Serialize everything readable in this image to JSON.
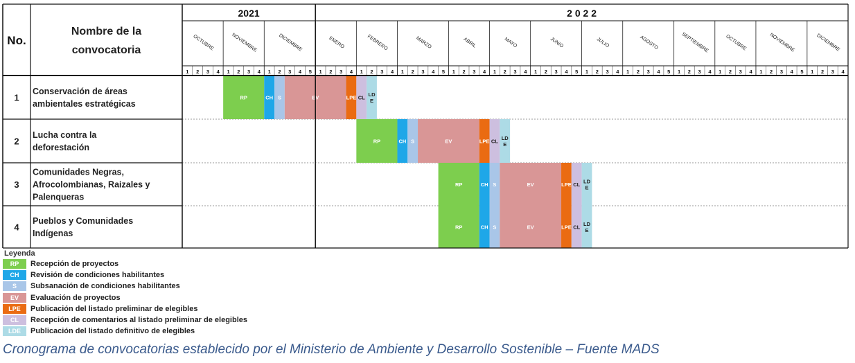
{
  "headers": {
    "no": "No.",
    "name": "Nombre de la convocatoria",
    "years": [
      {
        "label": "2021",
        "months": 3
      },
      {
        "label": "2022",
        "months": 12
      }
    ]
  },
  "months": [
    {
      "label": "OCTUBRE",
      "weeks": 4
    },
    {
      "label": "NOVIEMBRE",
      "weeks": 4
    },
    {
      "label": "DICIEMBRE",
      "weeks": 5
    },
    {
      "label": "ENERO",
      "weeks": 4
    },
    {
      "label": "FEBRERO",
      "weeks": 4
    },
    {
      "label": "MARZO",
      "weeks": 5
    },
    {
      "label": "ABRIL",
      "weeks": 4
    },
    {
      "label": "MAYO",
      "weeks": 4
    },
    {
      "label": "JUNIO",
      "weeks": 5
    },
    {
      "label": "JULIO",
      "weeks": 4
    },
    {
      "label": "AGOSTO",
      "weeks": 5
    },
    {
      "label": "SEPTIEMBRE",
      "weeks": 4
    },
    {
      "label": "OCTUBRE",
      "weeks": 4
    },
    {
      "label": "NOVIEMBRE",
      "weeks": 5
    },
    {
      "label": "DICIEMBRE",
      "weeks": 4
    }
  ],
  "phase_colors": {
    "RP": "#7dce4e",
    "CH": "#1ea7e8",
    "S": "#a9c6e8",
    "EV": "#d99696",
    "LPE": "#ea6b12",
    "CL": "#cdbfdf",
    "LDE": "#addbe6"
  },
  "chart_data": {
    "type": "gantt",
    "unit": "week index (0 = week 1 of OCTUBRE 2021)",
    "rows": [
      {
        "no": "1",
        "name": "Conservación de áreas ambientales estratégicas",
        "phases": [
          {
            "code": "RP",
            "label": "RP",
            "start": 4,
            "end": 7
          },
          {
            "code": "CH",
            "label": "CH",
            "start": 8,
            "end": 8
          },
          {
            "code": "S",
            "label": "S",
            "start": 9,
            "end": 9
          },
          {
            "code": "EV",
            "label": "EV",
            "start": 10,
            "end": 15
          },
          {
            "code": "LPE",
            "label": "LPE",
            "start": 16,
            "end": 16
          },
          {
            "code": "CL",
            "label": "CL",
            "start": 17,
            "end": 17
          },
          {
            "code": "LDE",
            "label": "LD\nE",
            "start": 18,
            "end": 18
          }
        ]
      },
      {
        "no": "2",
        "name": "Lucha contra la deforestación",
        "phases": [
          {
            "code": "RP",
            "label": "RP",
            "start": 17,
            "end": 20
          },
          {
            "code": "CH",
            "label": "CH",
            "start": 21,
            "end": 21
          },
          {
            "code": "S",
            "label": "S",
            "start": 22,
            "end": 22
          },
          {
            "code": "EV",
            "label": "EV",
            "start": 23,
            "end": 28
          },
          {
            "code": "LPE",
            "label": "LPE",
            "start": 29,
            "end": 29
          },
          {
            "code": "CL",
            "label": "CL",
            "start": 30,
            "end": 30
          },
          {
            "code": "LDE",
            "label": "LD\nE",
            "start": 31,
            "end": 31
          }
        ]
      },
      {
        "no": "3",
        "name": "Comunidades Negras, Afrocolombianas, Raizales y Palenqueras",
        "phases": [
          {
            "code": "RP",
            "label": "RP",
            "start": 25,
            "end": 28
          },
          {
            "code": "CH",
            "label": "CH",
            "start": 29,
            "end": 29
          },
          {
            "code": "S",
            "label": "S",
            "start": 30,
            "end": 30
          },
          {
            "code": "EV",
            "label": "EV",
            "start": 31,
            "end": 36
          },
          {
            "code": "LPE",
            "label": "LPE",
            "start": 37,
            "end": 37
          },
          {
            "code": "CL",
            "label": "CL",
            "start": 38,
            "end": 38
          },
          {
            "code": "LDE",
            "label": "LD\nE",
            "start": 39,
            "end": 39
          }
        ]
      },
      {
        "no": "4",
        "name": "Pueblos y Comunidades Indígenas",
        "phases": [
          {
            "code": "RP",
            "label": "RP",
            "start": 25,
            "end": 28
          },
          {
            "code": "CH",
            "label": "CH",
            "start": 29,
            "end": 29
          },
          {
            "code": "S",
            "label": "S",
            "start": 30,
            "end": 30
          },
          {
            "code": "EV",
            "label": "EV",
            "start": 31,
            "end": 36
          },
          {
            "code": "LPE",
            "label": "LPE",
            "start": 37,
            "end": 37
          },
          {
            "code": "CL",
            "label": "CL",
            "start": 38,
            "end": 38
          },
          {
            "code": "LDE",
            "label": "LD\nE",
            "start": 39,
            "end": 39
          }
        ]
      }
    ]
  },
  "legend": {
    "title": "Leyenda",
    "items": [
      {
        "code": "RP",
        "label": "Recepción de proyectos"
      },
      {
        "code": "CH",
        "label": "Revisión de condiciones habilitantes"
      },
      {
        "code": "S",
        "label": "Subsanación de condiciones habilitantes"
      },
      {
        "code": "EV",
        "label": "Evaluación de proyectos"
      },
      {
        "code": "LPE",
        "label": "Publicación del listado preliminar de elegibles"
      },
      {
        "code": "CL",
        "label": "Recepción de comentarios al listado preliminar de elegibles"
      },
      {
        "code": "LDE",
        "label": "Publicación del listado definitivo de elegibles"
      }
    ]
  },
  "caption": "Cronograma de convocatorias establecido por el Ministerio de Ambiente y Desarrollo Sostenible – Fuente MADS"
}
